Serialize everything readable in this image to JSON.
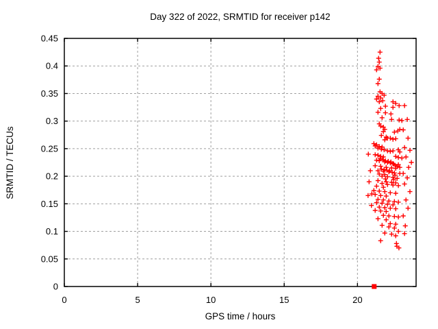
{
  "chart_data": {
    "type": "scatter",
    "title": "Day 322 of 2022, SRMTID for receiver p142",
    "xlabel": "GPS time / hours",
    "ylabel": "SRMTID / TECUs",
    "xlim": [
      0,
      24
    ],
    "ylim": [
      0,
      0.45
    ],
    "xticks": {
      "values": [
        0,
        5,
        10,
        15,
        20
      ],
      "labels": [
        "0",
        "5",
        "10",
        "15",
        "20"
      ]
    },
    "yticks": {
      "values": [
        0,
        0.05,
        0.1,
        0.15,
        0.2,
        0.25,
        0.3,
        0.35,
        0.4,
        0.45
      ],
      "labels": [
        "0",
        "0.05",
        "0.1",
        "0.15",
        "0.2",
        "0.25",
        "0.3",
        "0.35",
        "0.4",
        "0.45"
      ]
    },
    "grid": true,
    "legend": "none",
    "colors": {
      "marker": "#ff0000",
      "grid": "#9e9e9e",
      "axis": "#000000",
      "background": "#ffffff"
    },
    "series": [
      {
        "name": "SRMTID points",
        "marker": "plus",
        "color": "#ff0000",
        "points": [
          [
            21.54,
            0.425
          ],
          [
            21.44,
            0.414
          ],
          [
            21.49,
            0.407
          ],
          [
            21.4,
            0.399
          ],
          [
            21.54,
            0.396
          ],
          [
            21.3,
            0.393
          ],
          [
            21.49,
            0.376
          ],
          [
            21.4,
            0.368
          ],
          [
            21.54,
            0.353
          ],
          [
            21.68,
            0.35
          ],
          [
            21.82,
            0.347
          ],
          [
            21.4,
            0.345
          ],
          [
            21.58,
            0.342
          ],
          [
            21.3,
            0.34
          ],
          [
            21.72,
            0.337
          ],
          [
            21.49,
            0.335
          ],
          [
            22.42,
            0.335
          ],
          [
            22.61,
            0.332
          ],
          [
            22.84,
            0.328
          ],
          [
            23.21,
            0.328
          ],
          [
            21.91,
            0.327
          ],
          [
            22.42,
            0.325
          ],
          [
            21.58,
            0.323
          ],
          [
            21.4,
            0.316
          ],
          [
            21.91,
            0.315
          ],
          [
            22.28,
            0.313
          ],
          [
            21.68,
            0.306
          ],
          [
            22.33,
            0.303
          ],
          [
            23.4,
            0.303
          ],
          [
            22.84,
            0.302
          ],
          [
            23.03,
            0.301
          ],
          [
            21.49,
            0.295
          ],
          [
            21.58,
            0.291
          ],
          [
            21.77,
            0.289
          ],
          [
            21.86,
            0.285
          ],
          [
            22.89,
            0.285
          ],
          [
            23.12,
            0.284
          ],
          [
            22.75,
            0.282
          ],
          [
            21.77,
            0.281
          ],
          [
            22.52,
            0.28
          ],
          [
            21.63,
            0.274
          ],
          [
            21.96,
            0.271
          ],
          [
            22.05,
            0.269
          ],
          [
            22.24,
            0.269
          ],
          [
            23.45,
            0.269
          ],
          [
            22.61,
            0.268
          ],
          [
            22.42,
            0.267
          ],
          [
            21.86,
            0.266
          ],
          [
            21.12,
            0.259
          ],
          [
            21.3,
            0.257
          ],
          [
            21.21,
            0.255
          ],
          [
            21.49,
            0.254
          ],
          [
            21.68,
            0.253
          ],
          [
            23.21,
            0.252
          ],
          [
            21.4,
            0.251
          ],
          [
            21.63,
            0.249
          ],
          [
            21.82,
            0.248
          ],
          [
            22.79,
            0.248
          ],
          [
            23.58,
            0.247
          ],
          [
            22.05,
            0.246
          ],
          [
            22.42,
            0.246
          ],
          [
            22.24,
            0.245
          ],
          [
            22.89,
            0.244
          ],
          [
            20.74,
            0.24
          ],
          [
            21.21,
            0.239
          ],
          [
            21.4,
            0.238
          ],
          [
            21.58,
            0.236
          ],
          [
            22.61,
            0.236
          ],
          [
            21.77,
            0.235
          ],
          [
            23.31,
            0.235
          ],
          [
            22.79,
            0.234
          ],
          [
            23.03,
            0.233
          ],
          [
            21.54,
            0.232
          ],
          [
            21.72,
            0.23
          ],
          [
            21.3,
            0.229
          ],
          [
            21.49,
            0.228
          ],
          [
            21.91,
            0.228
          ],
          [
            22.1,
            0.227
          ],
          [
            21.86,
            0.226
          ],
          [
            22.28,
            0.226
          ],
          [
            22.05,
            0.225
          ],
          [
            23.68,
            0.225
          ],
          [
            22.24,
            0.224
          ],
          [
            22.42,
            0.223
          ],
          [
            22.47,
            0.222
          ],
          [
            22.79,
            0.221
          ],
          [
            22.56,
            0.22
          ],
          [
            21.21,
            0.219
          ],
          [
            21.58,
            0.218
          ],
          [
            22.7,
            0.218
          ],
          [
            21.96,
            0.216
          ],
          [
            22.89,
            0.216
          ],
          [
            23.49,
            0.216
          ],
          [
            22.33,
            0.215
          ],
          [
            22.61,
            0.214
          ],
          [
            21.63,
            0.213
          ],
          [
            21.82,
            0.212
          ],
          [
            22.0,
            0.211
          ],
          [
            20.88,
            0.21
          ],
          [
            21.4,
            0.21
          ],
          [
            22.19,
            0.21
          ],
          [
            21.77,
            0.209
          ],
          [
            22.14,
            0.208
          ],
          [
            22.37,
            0.207
          ],
          [
            22.52,
            0.206
          ],
          [
            22.89,
            0.205
          ],
          [
            23.12,
            0.205
          ],
          [
            21.49,
            0.204
          ],
          [
            21.86,
            0.203
          ],
          [
            22.56,
            0.202
          ],
          [
            21.68,
            0.2
          ],
          [
            22.05,
            0.199
          ],
          [
            22.42,
            0.198
          ],
          [
            23.4,
            0.197
          ],
          [
            22.7,
            0.196
          ],
          [
            21.91,
            0.195
          ],
          [
            22.47,
            0.194
          ],
          [
            21.4,
            0.192
          ],
          [
            20.79,
            0.19
          ],
          [
            21.96,
            0.19
          ],
          [
            22.33,
            0.189
          ],
          [
            22.61,
            0.188
          ],
          [
            21.68,
            0.187
          ],
          [
            23.21,
            0.186
          ],
          [
            22.05,
            0.185
          ],
          [
            22.42,
            0.184
          ],
          [
            22.79,
            0.183
          ],
          [
            21.3,
            0.182
          ],
          [
            21.77,
            0.18
          ],
          [
            21.12,
            0.174
          ],
          [
            21.49,
            0.173
          ],
          [
            21.86,
            0.172
          ],
          [
            23.58,
            0.172
          ],
          [
            22.24,
            0.17
          ],
          [
            22.61,
            0.169
          ],
          [
            20.98,
            0.168
          ],
          [
            21.21,
            0.167
          ],
          [
            20.72,
            0.165
          ],
          [
            21.58,
            0.165
          ],
          [
            21.96,
            0.164
          ],
          [
            21.4,
            0.158
          ],
          [
            21.77,
            0.157
          ],
          [
            23.31,
            0.157
          ],
          [
            22.14,
            0.155
          ],
          [
            22.52,
            0.154
          ],
          [
            22.79,
            0.153
          ],
          [
            21.3,
            0.152
          ],
          [
            21.68,
            0.151
          ],
          [
            22.05,
            0.149
          ],
          [
            22.42,
            0.148
          ],
          [
            20.95,
            0.147
          ],
          [
            21.49,
            0.144
          ],
          [
            21.86,
            0.143
          ],
          [
            22.24,
            0.142
          ],
          [
            23.45,
            0.142
          ],
          [
            22.61,
            0.141
          ],
          [
            21.21,
            0.138
          ],
          [
            21.58,
            0.137
          ],
          [
            21.96,
            0.136
          ],
          [
            21.77,
            0.129
          ],
          [
            22.14,
            0.128
          ],
          [
            23.12,
            0.128
          ],
          [
            22.52,
            0.127
          ],
          [
            22.79,
            0.126
          ],
          [
            21.4,
            0.123
          ],
          [
            21.96,
            0.121
          ],
          [
            22.24,
            0.114
          ],
          [
            22.61,
            0.113
          ],
          [
            21.68,
            0.111
          ],
          [
            23.26,
            0.11
          ],
          [
            22.14,
            0.108
          ],
          [
            22.52,
            0.106
          ],
          [
            22.79,
            0.1
          ],
          [
            21.86,
            0.097
          ],
          [
            23.21,
            0.096
          ],
          [
            22.33,
            0.095
          ],
          [
            22.61,
            0.092
          ],
          [
            21.58,
            0.083
          ],
          [
            22.66,
            0.078
          ],
          [
            22.69,
            0.073
          ],
          [
            22.83,
            0.07
          ]
        ]
      },
      {
        "name": "marker at zero",
        "marker": "filled-square",
        "color": "#ff0000",
        "points": [
          [
            21.14,
            0
          ]
        ]
      }
    ]
  }
}
